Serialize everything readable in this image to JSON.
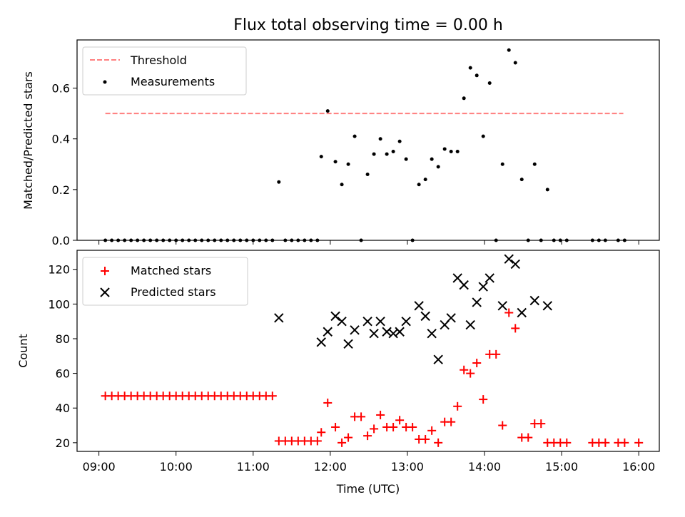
{
  "chart_data": [
    {
      "type": "scatter",
      "title": "Flux total observing time = 0.00 h",
      "xlabel": "",
      "ylabel": "Matched/Predicted stars",
      "xlim": [
        "08:43",
        "16:16"
      ],
      "ylim": [
        0,
        0.79
      ],
      "yticks": [
        0.0,
        0.2,
        0.4,
        0.6
      ],
      "ytick_labels": [
        "0.0",
        "0.2",
        "0.4",
        "0.6"
      ],
      "legend_placement": "upper-left",
      "threshold": {
        "name": "Threshold",
        "color": "#ff7f7f",
        "style": "dashed",
        "x": [
          "09:05",
          "15:48"
        ],
        "y": 0.5
      },
      "series": [
        {
          "name": "Measurements",
          "color": "#000000",
          "marker": "dot",
          "points": [
            [
              "09:05",
              0
            ],
            [
              "09:10",
              0
            ],
            [
              "09:15",
              0
            ],
            [
              "09:20",
              0
            ],
            [
              "09:25",
              0
            ],
            [
              "09:30",
              0
            ],
            [
              "09:35",
              0
            ],
            [
              "09:40",
              0
            ],
            [
              "09:45",
              0
            ],
            [
              "09:50",
              0
            ],
            [
              "09:55",
              0
            ],
            [
              "10:00",
              0
            ],
            [
              "10:05",
              0
            ],
            [
              "10:10",
              0
            ],
            [
              "10:15",
              0
            ],
            [
              "10:20",
              0
            ],
            [
              "10:25",
              0
            ],
            [
              "10:30",
              0
            ],
            [
              "10:35",
              0
            ],
            [
              "10:40",
              0
            ],
            [
              "10:45",
              0
            ],
            [
              "10:50",
              0
            ],
            [
              "10:55",
              0
            ],
            [
              "11:00",
              0
            ],
            [
              "11:05",
              0
            ],
            [
              "11:10",
              0
            ],
            [
              "11:15",
              0
            ],
            [
              "11:20",
              0.23
            ],
            [
              "11:25",
              0
            ],
            [
              "11:30",
              0
            ],
            [
              "11:35",
              0
            ],
            [
              "11:40",
              0
            ],
            [
              "11:45",
              0
            ],
            [
              "11:50",
              0
            ],
            [
              "11:53",
              0.33
            ],
            [
              "11:58",
              0.51
            ],
            [
              "12:04",
              0.31
            ],
            [
              "12:09",
              0.22
            ],
            [
              "12:14",
              0.3
            ],
            [
              "12:19",
              0.41
            ],
            [
              "12:24",
              0
            ],
            [
              "12:29",
              0.26
            ],
            [
              "12:34",
              0.34
            ],
            [
              "12:39",
              0.4
            ],
            [
              "12:44",
              0.34
            ],
            [
              "12:49",
              0.35
            ],
            [
              "12:54",
              0.39
            ],
            [
              "12:59",
              0.32
            ],
            [
              "13:04",
              0
            ],
            [
              "13:09",
              0.22
            ],
            [
              "13:14",
              0.24
            ],
            [
              "13:19",
              0.32
            ],
            [
              "13:24",
              0.29
            ],
            [
              "13:29",
              0.36
            ],
            [
              "13:34",
              0.35
            ],
            [
              "13:39",
              0.35
            ],
            [
              "13:44",
              0.56
            ],
            [
              "13:49",
              0.68
            ],
            [
              "13:54",
              0.65
            ],
            [
              "13:59",
              0.41
            ],
            [
              "14:04",
              0.62
            ],
            [
              "14:09",
              0
            ],
            [
              "14:14",
              0.3
            ],
            [
              "14:19",
              0.75
            ],
            [
              "14:24",
              0.7
            ],
            [
              "14:29",
              0.24
            ],
            [
              "14:34",
              0
            ],
            [
              "14:39",
              0.3
            ],
            [
              "14:44",
              0
            ],
            [
              "14:49",
              0.2
            ],
            [
              "14:54",
              0
            ],
            [
              "14:59",
              0
            ],
            [
              "15:04",
              0
            ],
            [
              "15:24",
              0
            ],
            [
              "15:29",
              0
            ],
            [
              "15:34",
              0
            ],
            [
              "15:44",
              0
            ],
            [
              "15:49",
              0
            ]
          ]
        }
      ]
    },
    {
      "type": "scatter",
      "title": "",
      "xlabel": "Time (UTC)",
      "ylabel": "Count",
      "xlim": [
        "08:43",
        "16:16"
      ],
      "ylim": [
        15,
        131
      ],
      "yticks": [
        20,
        40,
        60,
        80,
        100,
        120
      ],
      "ytick_labels": [
        "20",
        "40",
        "60",
        "80",
        "100",
        "120"
      ],
      "xticks": [
        "09:00",
        "10:00",
        "11:00",
        "12:00",
        "13:00",
        "14:00",
        "15:00",
        "16:00"
      ],
      "xtick_labels": [
        "09:00",
        "10:00",
        "11:00",
        "12:00",
        "13:00",
        "14:00",
        "15:00",
        "16:00"
      ],
      "legend_placement": "upper-left",
      "series": [
        {
          "name": "Matched stars",
          "color": "#ff0000",
          "marker": "plus",
          "points": [
            [
              "09:05",
              47
            ],
            [
              "09:10",
              47
            ],
            [
              "09:15",
              47
            ],
            [
              "09:20",
              47
            ],
            [
              "09:25",
              47
            ],
            [
              "09:30",
              47
            ],
            [
              "09:35",
              47
            ],
            [
              "09:40",
              47
            ],
            [
              "09:45",
              47
            ],
            [
              "09:50",
              47
            ],
            [
              "09:55",
              47
            ],
            [
              "10:00",
              47
            ],
            [
              "10:05",
              47
            ],
            [
              "10:10",
              47
            ],
            [
              "10:15",
              47
            ],
            [
              "10:20",
              47
            ],
            [
              "10:25",
              47
            ],
            [
              "10:30",
              47
            ],
            [
              "10:35",
              47
            ],
            [
              "10:40",
              47
            ],
            [
              "10:45",
              47
            ],
            [
              "10:50",
              47
            ],
            [
              "10:55",
              47
            ],
            [
              "11:00",
              47
            ],
            [
              "11:05",
              47
            ],
            [
              "11:10",
              47
            ],
            [
              "11:15",
              47
            ],
            [
              "11:20",
              21
            ],
            [
              "11:25",
              21
            ],
            [
              "11:30",
              21
            ],
            [
              "11:35",
              21
            ],
            [
              "11:40",
              21
            ],
            [
              "11:45",
              21
            ],
            [
              "11:50",
              21
            ],
            [
              "11:53",
              26
            ],
            [
              "11:58",
              43
            ],
            [
              "12:04",
              29
            ],
            [
              "12:09",
              20
            ],
            [
              "12:14",
              23
            ],
            [
              "12:19",
              35
            ],
            [
              "12:24",
              35
            ],
            [
              "12:29",
              24
            ],
            [
              "12:34",
              28
            ],
            [
              "12:39",
              36
            ],
            [
              "12:44",
              29
            ],
            [
              "12:49",
              29
            ],
            [
              "12:54",
              33
            ],
            [
              "12:59",
              29
            ],
            [
              "13:04",
              29
            ],
            [
              "13:09",
              22
            ],
            [
              "13:14",
              22
            ],
            [
              "13:19",
              27
            ],
            [
              "13:24",
              20
            ],
            [
              "13:29",
              32
            ],
            [
              "13:34",
              32
            ],
            [
              "13:39",
              41
            ],
            [
              "13:44",
              62
            ],
            [
              "13:49",
              60
            ],
            [
              "13:54",
              66
            ],
            [
              "13:59",
              45
            ],
            [
              "14:04",
              71
            ],
            [
              "14:09",
              71
            ],
            [
              "14:14",
              30
            ],
            [
              "14:19",
              95
            ],
            [
              "14:24",
              86
            ],
            [
              "14:29",
              23
            ],
            [
              "14:34",
              23
            ],
            [
              "14:39",
              31
            ],
            [
              "14:44",
              31
            ],
            [
              "14:49",
              20
            ],
            [
              "14:54",
              20
            ],
            [
              "14:59",
              20
            ],
            [
              "15:04",
              20
            ],
            [
              "15:24",
              20
            ],
            [
              "15:29",
              20
            ],
            [
              "15:34",
              20
            ],
            [
              "15:44",
              20
            ],
            [
              "15:49",
              20
            ],
            [
              "16:00",
              20
            ]
          ]
        },
        {
          "name": "Predicted stars",
          "color": "#000000",
          "marker": "x",
          "points": [
            [
              "11:20",
              92
            ],
            [
              "11:53",
              78
            ],
            [
              "11:58",
              84
            ],
            [
              "12:04",
              93
            ],
            [
              "12:09",
              90
            ],
            [
              "12:14",
              77
            ],
            [
              "12:19",
              85
            ],
            [
              "12:29",
              90
            ],
            [
              "12:34",
              83
            ],
            [
              "12:39",
              90
            ],
            [
              "12:44",
              84
            ],
            [
              "12:49",
              83
            ],
            [
              "12:54",
              84
            ],
            [
              "12:59",
              90
            ],
            [
              "13:09",
              99
            ],
            [
              "13:14",
              93
            ],
            [
              "13:19",
              83
            ],
            [
              "13:24",
              68
            ],
            [
              "13:29",
              88
            ],
            [
              "13:34",
              92
            ],
            [
              "13:39",
              115
            ],
            [
              "13:44",
              111
            ],
            [
              "13:49",
              88
            ],
            [
              "13:54",
              101
            ],
            [
              "13:59",
              110
            ],
            [
              "14:04",
              115
            ],
            [
              "14:14",
              99
            ],
            [
              "14:19",
              126
            ],
            [
              "14:24",
              123
            ],
            [
              "14:29",
              95
            ],
            [
              "14:39",
              102
            ],
            [
              "14:49",
              99
            ]
          ]
        }
      ]
    }
  ]
}
